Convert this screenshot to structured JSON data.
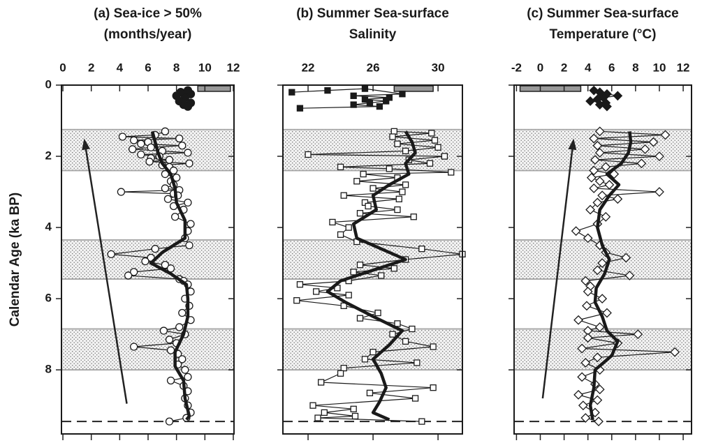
{
  "chart_data": [
    {
      "type": "profile",
      "title": [
        "(a) Sea-ice > 50%",
        "(months/year)"
      ],
      "ylabel": "Calendar Age (ka BP)",
      "xlim": [
        -0.1,
        12.05
      ],
      "xticks": [
        0,
        2,
        4,
        6,
        8,
        10,
        12
      ],
      "ylim": [
        0,
        9.8
      ],
      "yticks": [
        0,
        2,
        4,
        6,
        8
      ],
      "show_ytick_labels": true,
      "bands": [
        [
          1.25,
          2.4
        ],
        [
          4.35,
          5.45
        ],
        [
          6.85,
          8.0
        ]
      ],
      "reference_age": 9.45,
      "modern_range": [
        9.5,
        11.8
      ],
      "arrow": [
        [
          4.5,
          8.95
        ],
        [
          1.5,
          1.5
        ]
      ],
      "series": [
        {
          "marker": "circle",
          "filled": true,
          "line": false,
          "ages": [
            0.15,
            0.2,
            0.25,
            0.3,
            0.35,
            0.45,
            0.5,
            0.55,
            0.6
          ],
          "values": [
            8.8,
            8.3,
            9.0,
            8.0,
            8.6,
            8.2,
            9.0,
            8.5,
            8.8
          ]
        },
        {
          "marker": "circle",
          "filled": false,
          "line": true,
          "ages": [
            1.3,
            1.4,
            1.45,
            1.5,
            1.55,
            1.6,
            1.65,
            1.7,
            1.75,
            1.8,
            1.85,
            1.9,
            1.95,
            2.0,
            2.05,
            2.1,
            2.15,
            2.2,
            2.25,
            2.3,
            2.4,
            2.5,
            2.6,
            2.7,
            2.8,
            2.9,
            2.95,
            3.0,
            3.05,
            3.1,
            3.2,
            3.3,
            3.4,
            3.5,
            3.7,
            3.9,
            4.1,
            4.3,
            4.5,
            4.6,
            4.75,
            4.85,
            4.95,
            5.05,
            5.15,
            5.25,
            5.35,
            5.45,
            5.5,
            5.6,
            5.8,
            6.0,
            6.2,
            6.4,
            6.6,
            6.8,
            6.9,
            7.0,
            7.15,
            7.25,
            7.35,
            7.45,
            7.55,
            7.7,
            7.85,
            8.0,
            8.2,
            8.3,
            8.45,
            8.6,
            8.8,
            9.0,
            9.2,
            9.35,
            9.45
          ],
          "values": [
            7.2,
            6.5,
            4.2,
            8.2,
            5.0,
            6.0,
            5.5,
            8.4,
            6.2,
            4.9,
            7.0,
            8.8,
            5.5,
            6.8,
            6.2,
            7.5,
            6.1,
            8.9,
            7.0,
            7.5,
            7.8,
            7.2,
            8.0,
            7.6,
            7.8,
            7.2,
            8.2,
            4.1,
            7.8,
            8.1,
            7.4,
            8.8,
            7.8,
            8.5,
            7.9,
            9.0,
            8.8,
            8.6,
            8.9,
            6.5,
            3.4,
            6.2,
            5.8,
            7.2,
            7.6,
            5.0,
            4.6,
            8.2,
            8.5,
            8.8,
            9.0,
            8.6,
            8.9,
            8.4,
            9.0,
            8.2,
            7.1,
            8.6,
            7.5,
            8.0,
            5.0,
            7.6,
            8.1,
            8.4,
            8.1,
            8.6,
            8.8,
            7.6,
            8.5,
            8.8,
            8.6,
            8.8,
            9.0,
            8.7,
            7.5
          ]
        },
        {
          "marker": "none",
          "filled": false,
          "line": true,
          "thick": true,
          "ages": [
            1.3,
            1.6,
            1.9,
            2.2,
            2.5,
            2.9,
            3.3,
            3.8,
            4.3,
            4.7,
            5.0,
            5.3,
            5.6,
            6.0,
            6.5,
            7.0,
            7.5,
            7.9,
            8.3,
            8.8,
            9.3,
            9.4
          ],
          "values": [
            6.3,
            6.5,
            6.7,
            7.0,
            7.6,
            7.9,
            8.0,
            8.6,
            8.6,
            7.0,
            6.2,
            7.6,
            8.7,
            8.8,
            8.8,
            8.5,
            7.9,
            7.9,
            8.5,
            8.6,
            8.9,
            8.7
          ]
        }
      ]
    },
    {
      "type": "profile",
      "title": [
        "(b) Summer Sea-surface",
        "Salinity"
      ],
      "xlim": [
        20.45,
        31.5
      ],
      "xticks": [
        22,
        26,
        30
      ],
      "ylim": [
        0,
        9.8
      ],
      "yticks": [
        0,
        2,
        4,
        6,
        8
      ],
      "show_ytick_labels": false,
      "bands": [
        [
          1.25,
          2.4
        ],
        [
          4.35,
          5.45
        ],
        [
          6.85,
          8.0
        ]
      ],
      "reference_age": 9.45,
      "modern_range": [
        27.3,
        29.7
      ],
      "series": [
        {
          "marker": "square",
          "filled": true,
          "line": true,
          "ages": [
            0.2,
            0.15,
            0.1,
            0.25,
            0.3,
            0.35,
            0.4,
            0.45,
            0.5,
            0.55,
            0.6,
            0.65
          ],
          "values": [
            21.0,
            23.2,
            25.5,
            27.8,
            24.8,
            27.0,
            25.5,
            26.8,
            25.8,
            24.8,
            26.4,
            21.5
          ]
        },
        {
          "marker": "square",
          "filled": false,
          "line": true,
          "ages": [
            1.3,
            1.35,
            1.45,
            1.55,
            1.65,
            1.75,
            1.85,
            1.95,
            2.0,
            2.1,
            2.2,
            2.3,
            2.35,
            2.45,
            2.5,
            2.6,
            2.7,
            2.8,
            2.9,
            3.0,
            3.1,
            3.2,
            3.3,
            3.4,
            3.5,
            3.6,
            3.7,
            3.85,
            4.0,
            4.2,
            4.4,
            4.6,
            4.75,
            4.9,
            5.05,
            5.15,
            5.25,
            5.35,
            5.5,
            5.6,
            5.7,
            5.8,
            5.9,
            6.05,
            6.2,
            6.4,
            6.55,
            6.7,
            6.85,
            7.0,
            7.2,
            7.35,
            7.5,
            7.7,
            7.8,
            7.95,
            8.1,
            8.35,
            8.5,
            8.65,
            8.8,
            9.0,
            9.1,
            9.2,
            9.3,
            9.35,
            9.45
          ],
          "values": [
            27.3,
            29.6,
            27.2,
            29.8,
            27.5,
            30.0,
            28.0,
            22.0,
            30.4,
            28.2,
            29.5,
            24.0,
            27.0,
            30.8,
            25.4,
            27.5,
            25.0,
            28.0,
            26.0,
            27.8,
            24.2,
            27.6,
            25.5,
            25.7,
            27.5,
            25.2,
            28.5,
            23.5,
            24.5,
            24.0,
            25.0,
            29.0,
            31.5,
            28.0,
            25.2,
            27.3,
            24.8,
            26.5,
            24.5,
            21.5,
            23.8,
            22.5,
            24.5,
            21.3,
            24.2,
            26.3,
            25.2,
            27.5,
            28.4,
            27.2,
            28.0,
            29.7,
            26.0,
            25.5,
            28.7,
            24.2,
            24.0,
            22.8,
            29.7,
            25.8,
            28.6,
            22.3,
            24.8,
            23.0,
            24.9,
            22.6,
            29.0
          ]
        },
        {
          "marker": "none",
          "filled": false,
          "line": true,
          "thick": true,
          "ages": [
            1.3,
            1.6,
            1.9,
            2.2,
            2.5,
            2.8,
            3.1,
            3.5,
            3.9,
            4.3,
            4.6,
            4.9,
            5.2,
            5.5,
            5.8,
            6.1,
            6.5,
            6.9,
            7.3,
            7.7,
            8.1,
            8.5,
            8.9,
            9.2,
            9.4
          ],
          "values": [
            28.0,
            28.4,
            28.6,
            28.0,
            28.2,
            27.0,
            26.0,
            26.2,
            24.8,
            25.0,
            26.5,
            28.0,
            26.0,
            24.0,
            23.2,
            24.3,
            26.0,
            27.8,
            27.0,
            26.0,
            26.5,
            26.8,
            26.4,
            26.0,
            27.0
          ]
        }
      ]
    },
    {
      "type": "profile",
      "title": [
        "(c) Summer Sea-surface",
        "Temperature (°C)"
      ],
      "xlim": [
        -2.2,
        12.7
      ],
      "xticks": [
        -2,
        0,
        2,
        4,
        6,
        8,
        10,
        12
      ],
      "ylim": [
        0,
        9.8
      ],
      "yticks": [
        0,
        2,
        4,
        6,
        8
      ],
      "show_ytick_labels": false,
      "bands": [
        [
          1.25,
          2.4
        ],
        [
          4.35,
          5.45
        ],
        [
          6.85,
          8.0
        ]
      ],
      "reference_age": 9.45,
      "modern_range": [
        -1.7,
        3.4
      ],
      "arrow": [
        [
          0.2,
          8.8
        ],
        [
          2.8,
          1.5
        ]
      ],
      "series": [
        {
          "marker": "diamond",
          "filled": true,
          "line": true,
          "ages": [
            0.15,
            0.2,
            0.25,
            0.3,
            0.35,
            0.4,
            0.45,
            0.5,
            0.55,
            0.6
          ],
          "values": [
            4.5,
            5.0,
            5.6,
            6.5,
            5.3,
            4.8,
            4.2,
            5.5,
            5.0,
            5.6
          ]
        },
        {
          "marker": "diamond",
          "filled": false,
          "line": true,
          "ages": [
            1.3,
            1.4,
            1.5,
            1.6,
            1.7,
            1.8,
            1.9,
            2.0,
            2.1,
            2.2,
            2.3,
            2.4,
            2.5,
            2.6,
            2.7,
            2.8,
            2.9,
            3.0,
            3.1,
            3.2,
            3.3,
            3.5,
            3.7,
            3.9,
            4.1,
            4.3,
            4.5,
            4.7,
            4.85,
            5.0,
            5.2,
            5.35,
            5.5,
            5.65,
            5.8,
            6.0,
            6.2,
            6.4,
            6.6,
            6.8,
            6.9,
            7.0,
            7.1,
            7.25,
            7.4,
            7.5,
            7.65,
            7.8,
            8.0,
            8.2,
            8.4,
            8.55,
            8.7,
            8.85,
            9.0,
            9.2,
            9.35,
            9.45
          ],
          "values": [
            5.0,
            10.5,
            4.5,
            9.5,
            4.8,
            8.8,
            5.0,
            10.0,
            4.6,
            8.5,
            5.5,
            4.5,
            6.2,
            4.3,
            5.0,
            5.8,
            4.5,
            10.0,
            5.2,
            6.5,
            4.8,
            4.2,
            5.5,
            4.8,
            3.0,
            4.0,
            5.0,
            5.5,
            7.2,
            5.2,
            4.8,
            7.5,
            3.8,
            4.2,
            4.0,
            5.2,
            3.9,
            5.6,
            3.2,
            5.0,
            4.0,
            8.2,
            4.0,
            6.5,
            3.5,
            11.3,
            4.8,
            3.8,
            5.0,
            3.5,
            4.6,
            5.0,
            3.2,
            4.8,
            3.6,
            4.6,
            3.8,
            4.9
          ]
        },
        {
          "marker": "none",
          "filled": false,
          "line": true,
          "thick": true,
          "ages": [
            1.3,
            1.6,
            1.9,
            2.2,
            2.5,
            2.8,
            3.1,
            3.5,
            4.0,
            4.5,
            4.9,
            5.3,
            5.7,
            6.1,
            6.5,
            6.9,
            7.2,
            7.6,
            8.0,
            8.5,
            9.0,
            9.4
          ],
          "values": [
            7.5,
            7.6,
            7.4,
            6.8,
            5.6,
            6.6,
            5.8,
            5.0,
            4.8,
            5.2,
            5.8,
            5.4,
            4.7,
            4.6,
            5.2,
            5.6,
            6.5,
            6.0,
            4.6,
            4.5,
            4.2,
            4.4
          ]
        }
      ]
    }
  ]
}
